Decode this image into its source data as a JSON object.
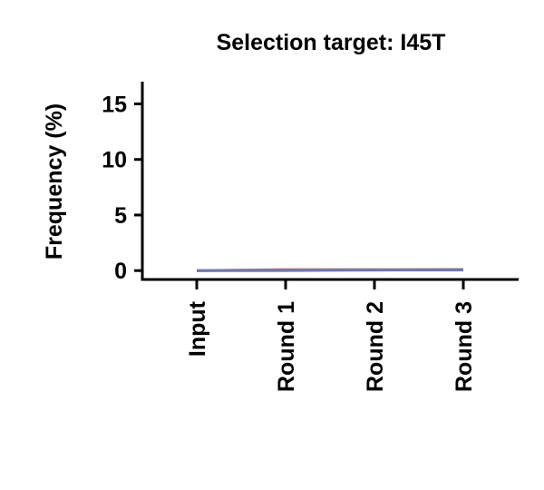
{
  "chart_data": {
    "type": "line",
    "title": "Selection target: I45T",
    "xlabel": "",
    "ylabel": "Frequency (%)",
    "categories": [
      "Input",
      "Round 1",
      "Round 2",
      "Round 3"
    ],
    "ylim": [
      -0.8,
      17
    ],
    "yticks": [
      0,
      5,
      10,
      15
    ],
    "grid": false,
    "series": [
      {
        "values": [
          0.0,
          0.1,
          0.1,
          0.1
        ],
        "color": "#c98a6a"
      },
      {
        "values": [
          0.0,
          0.05,
          0.05,
          0.1
        ],
        "color": "#8a6a9a"
      },
      {
        "values": [
          0.0,
          0.0,
          0.05,
          0.05
        ],
        "color": "#6a7ab0"
      }
    ]
  }
}
